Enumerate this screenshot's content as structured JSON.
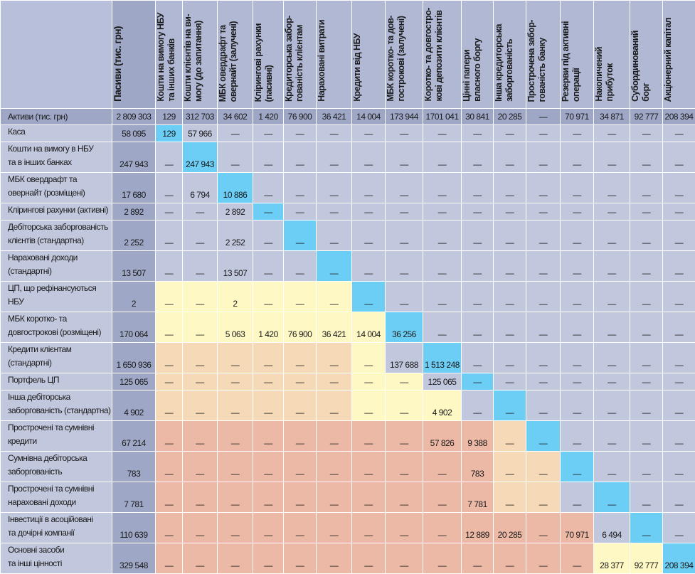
{
  "header": {
    "pasyvy": "Пасиви (тис. грн)",
    "columns": [
      "Кошти на вимогу НБУ\nта інших банків",
      "Кошти клієнтів на ви-\nмогу (до запитання)",
      "МБК овердрафт та\nовернайт (залучені)",
      "Клірингові рахунки\n(пасивні)",
      "Кредиторська забор-\nгованість клієнтам",
      "Нараховані витрати",
      "Кредити від НБУ",
      "МБК коротко- та дов-\nгострокові (залучені)",
      "Коротко- та довгостро-\nкові депозити клієнтів",
      "Цінні папери\nвласного боргу",
      "Інша кредиторська\nзаборгованість",
      "Прострочена забор-\nгованість банку",
      "Резерви під активні\nоперації",
      "Накопичений\nприбуток",
      "Субординований\nборг",
      "Акціонерний капітал"
    ]
  },
  "totals": {
    "label": "Активи  (тис. грн)",
    "pasyvy": "2 809 303",
    "values": [
      "129",
      "312 703",
      "34 602",
      "1 420",
      "76 900",
      "36 421",
      "14 004",
      "173 944",
      "1701 041",
      "30 841",
      "20 285",
      "—",
      "70 971",
      "34 871",
      "92 777",
      "208 394"
    ]
  },
  "colors": {
    "g": "#c1c7dc",
    "c": "#6ccef5",
    "y": "#fef8c4",
    "p": "#f6d9b6",
    "s": "#ecb9a6",
    "pasyvy": "#9ea8c6"
  },
  "rows": [
    {
      "label": "Каса",
      "total": "58 095",
      "values": [
        "129",
        "57 966",
        "—",
        "—",
        "—",
        "—",
        "—",
        "—",
        "—",
        "—",
        "—",
        "—",
        "—",
        "—",
        "—",
        "—"
      ],
      "colors": "cggggggggggggggg"
    },
    {
      "label": "Кошти на вимогу в НБУ\nта в інших банках",
      "total": "247 943",
      "values": [
        "—",
        "247 943",
        "—",
        "—",
        "—",
        "—",
        "—",
        "—",
        "—",
        "—",
        "—",
        "—",
        "—",
        "—",
        "—",
        "—"
      ],
      "colors": "gcgggggggggggggg"
    },
    {
      "label": "МБК овердрафт та\nовернайт (розміщені)",
      "total": "17 680",
      "values": [
        "—",
        "6 794",
        "10 886",
        "—",
        "—",
        "—",
        "—",
        "—",
        "—",
        "—",
        "—",
        "—",
        "—",
        "—",
        "—",
        "—"
      ],
      "colors": "ggcggggggggggggg"
    },
    {
      "label": "Клірингові рахунки (активні)",
      "total": "2 892",
      "values": [
        "—",
        "—",
        "2 892",
        "—",
        "—",
        "—",
        "—",
        "—",
        "—",
        "—",
        "—",
        "—",
        "—",
        "—",
        "—",
        "—"
      ],
      "colors": "gggcgggggggggggg"
    },
    {
      "label": "Дебіторська заборгованість\nклієнтів (стандартна)",
      "total": "2 252",
      "values": [
        "—",
        "—",
        "2 252",
        "—",
        "—",
        "—",
        "—",
        "—",
        "—",
        "—",
        "—",
        "—",
        "—",
        "—",
        "—",
        "—"
      ],
      "colors": "ggggcggggggggggg"
    },
    {
      "label": "Нараховані доходи\n(стандартні)",
      "total": "13 507",
      "values": [
        "—",
        "—",
        "13 507",
        "—",
        "—",
        "—",
        "—",
        "—",
        "—",
        "—",
        "—",
        "—",
        "—",
        "—",
        "—",
        "—"
      ],
      "colors": "gggggcgggggggggg"
    },
    {
      "label": "ЦП, що рефінансуються НБУ",
      "total": "2",
      "values": [
        "—",
        "—",
        "2",
        "—",
        "—",
        "—",
        "—",
        "—",
        "—",
        "—",
        "—",
        "—",
        "—",
        "—",
        "—",
        "—"
      ],
      "colors": "yyyyyycggggggggg"
    },
    {
      "label": "МБК коротко- та\nдовгострокові (розміщені)",
      "total": "170 064",
      "values": [
        "—",
        "—",
        "5 063",
        "1 420",
        "76 900",
        "36 421",
        "14 004",
        "36 256",
        "—",
        "—",
        "—",
        "—",
        "—",
        "—",
        "—",
        "—"
      ],
      "colors": "yyyyyyycgggggggg"
    },
    {
      "label": "Кредити клієнтам\n(стандартні)",
      "total": "1 650 936",
      "values": [
        "—",
        "—",
        "—",
        "—",
        "—",
        "—",
        "—",
        "137 688",
        "1 513 248",
        "—",
        "—",
        "—",
        "—",
        "—",
        "—",
        "—"
      ],
      "colors": "ppppppygcggggggg"
    },
    {
      "label": "Портфель ЦП",
      "total": "125 065",
      "values": [
        "—",
        "—",
        "—",
        "—",
        "—",
        "—",
        "—",
        "—",
        "125 065",
        "—",
        "—",
        "—",
        "—",
        "—",
        "—",
        "—"
      ],
      "colors": "ppppppyygcgggggg"
    },
    {
      "label": "Інша дебіторська\nзаборгованість (стандартна)",
      "total": "4 902",
      "values": [
        "—",
        "—",
        "—",
        "—",
        "—",
        "—",
        "—",
        "—",
        "4 902",
        "—",
        "—",
        "—",
        "—",
        "—",
        "—",
        "—"
      ],
      "colors": "ppppppyyygcggggg"
    },
    {
      "label": "Прострочені та сумнівні\nкредити",
      "total": "67 214",
      "values": [
        "—",
        "—",
        "—",
        "—",
        "—",
        "—",
        "—",
        "—",
        "57 826",
        "9 388",
        "—",
        "—",
        "—",
        "—",
        "—",
        "—"
      ],
      "colors": "sssssssssspcgggg"
    },
    {
      "label": "Сумнівна дебіторська\nзаборгованість",
      "total": "783",
      "values": [
        "—",
        "—",
        "—",
        "—",
        "—",
        "—",
        "—",
        "—",
        "—",
        "783",
        "—",
        "—",
        "—",
        "—",
        "—",
        "—"
      ],
      "colors": "ssssssssssppcggg"
    },
    {
      "label": "Прострочені та сумнівні\nнараховані доходи",
      "total": "7 781",
      "values": [
        "—",
        "—",
        "—",
        "—",
        "—",
        "—",
        "—",
        "—",
        "—",
        "7 781",
        "—",
        "—",
        "—",
        "—",
        "—",
        "—"
      ],
      "colors": "ssssssssssppgcgg"
    },
    {
      "label": "Інвестиції в асоційовані\nта дочірні компанії",
      "total": "110 639",
      "values": [
        "—",
        "—",
        "—",
        "—",
        "—",
        "—",
        "—",
        "—",
        "—",
        "12 889",
        "20 285",
        "—",
        "70 971",
        "6 494",
        "—",
        "—"
      ],
      "colors": "sssssssssssssgcg"
    },
    {
      "label": "Основні засоби\nта інші цінності",
      "total": "329 548",
      "values": [
        "—",
        "—",
        "—",
        "—",
        "—",
        "—",
        "—",
        "—",
        "—",
        "—",
        "—",
        "—",
        "—",
        "28 377",
        "92 777",
        "208 394"
      ],
      "colors": "sssssssssssssyyc"
    }
  ]
}
